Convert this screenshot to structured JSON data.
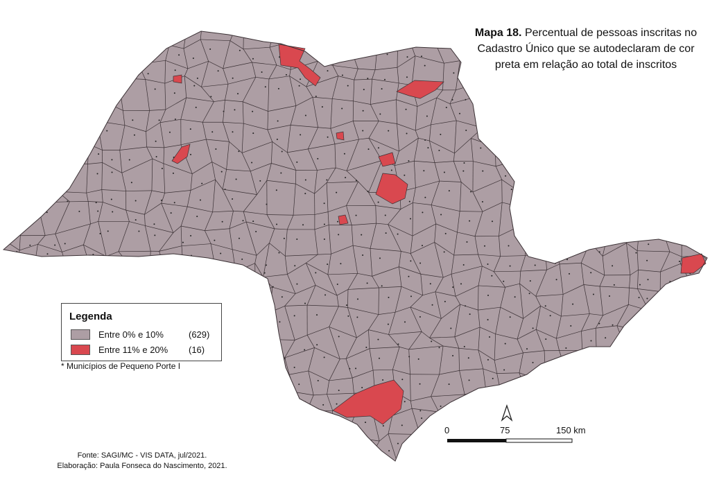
{
  "header": {
    "title_bold": "Mapa 18.",
    "title": "Percentual de pessoas inscritas no Cadastro Único que se autodeclaram de cor preta em relação ao total de inscritos"
  },
  "legend": {
    "title": "Legenda",
    "items": [
      {
        "label": "Entre 0% e 10%",
        "count": "(629)",
        "color": "#ad9ea4"
      },
      {
        "label": "Entre 11% e 20%",
        "count": "(16)",
        "color": "#d9484f"
      }
    ]
  },
  "note": "* Municípios de Pequeno Porte I",
  "scale": {
    "labels": [
      "0",
      "75",
      "150 km"
    ]
  },
  "source": [
    "Fonte: SAGI/MC - VIS DATA, jul/2021.",
    "Elaboração: Paula Fonseca do Nascimento, 2021."
  ]
}
